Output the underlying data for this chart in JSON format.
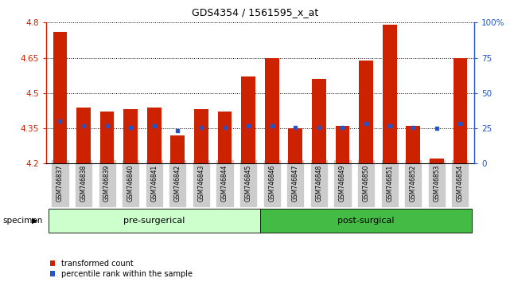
{
  "title": "GDS4354 / 1561595_x_at",
  "samples": [
    "GSM746837",
    "GSM746838",
    "GSM746839",
    "GSM746840",
    "GSM746841",
    "GSM746842",
    "GSM746843",
    "GSM746844",
    "GSM746845",
    "GSM746846",
    "GSM746847",
    "GSM746848",
    "GSM746849",
    "GSM746850",
    "GSM746851",
    "GSM746852",
    "GSM746853",
    "GSM746854"
  ],
  "bar_values": [
    4.76,
    4.44,
    4.42,
    4.43,
    4.44,
    4.32,
    4.43,
    4.42,
    4.57,
    4.65,
    4.35,
    4.56,
    4.36,
    4.64,
    4.79,
    4.36,
    4.22,
    4.65
  ],
  "percentile_values": [
    4.38,
    4.36,
    4.36,
    4.355,
    4.36,
    4.34,
    4.355,
    4.355,
    4.36,
    4.36,
    4.352,
    4.355,
    4.352,
    4.37,
    4.36,
    4.352,
    4.35,
    4.37
  ],
  "pre_surgical_count": 9,
  "post_surgical_count": 9,
  "ylim_left": [
    4.2,
    4.8
  ],
  "ylim_right": [
    0,
    100
  ],
  "yticks_left": [
    4.2,
    4.35,
    4.5,
    4.65,
    4.8
  ],
  "ytick_labels_left": [
    "4.2",
    "4.35",
    "4.5",
    "4.65",
    "4.8"
  ],
  "yticks_right": [
    0,
    25,
    50,
    75,
    100
  ],
  "ytick_labels_right": [
    "0",
    "25",
    "50",
    "75",
    "100%"
  ],
  "bar_color": "#cc2200",
  "percentile_color": "#2255cc",
  "pre_surgical_color": "#ccffcc",
  "post_surgical_color": "#44bb44",
  "label_bg_color": "#cccccc",
  "bar_width": 0.6,
  "base_value": 4.2,
  "legend_labels": [
    "transformed count",
    "percentile rank within the sample"
  ],
  "specimen_label": "specimen",
  "pre_label": "pre-surgerical",
  "post_label": "post-surgical"
}
